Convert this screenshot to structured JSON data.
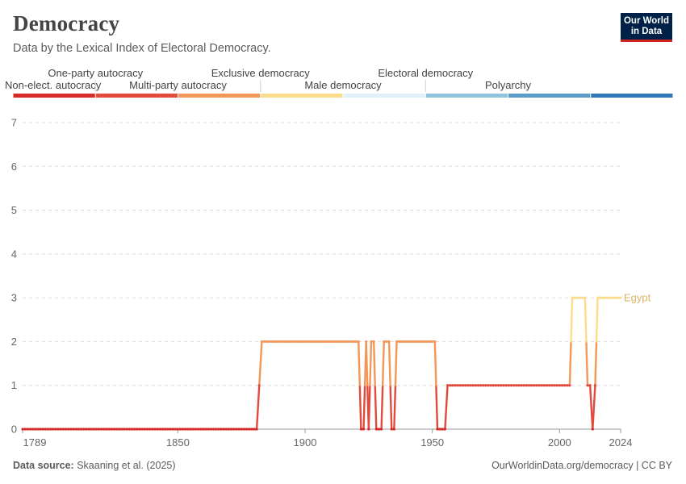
{
  "header": {
    "title": "Democracy",
    "subtitle": "Data by the Lexical Index of Electoral Democracy.",
    "logo_line1": "Our World",
    "logo_line2": "in Data"
  },
  "footer": {
    "source_label": "Data source:",
    "source_text": " Skaaning et al. (2025)",
    "right_text": "OurWorldinData.org/democracy | CC BY"
  },
  "chart_data": {
    "type": "line",
    "title": "Democracy",
    "subtitle": "Data by the Lexical Index of Electoral Democracy.",
    "xlabel": "",
    "ylabel": "",
    "xlim": [
      1789,
      2024
    ],
    "ylim": [
      0,
      7
    ],
    "yticks": [
      0,
      1,
      2,
      3,
      4,
      5,
      6,
      7
    ],
    "xticks": [
      1789,
      1850,
      1900,
      1950,
      2000,
      2024
    ],
    "grid": true,
    "legend": {
      "type": "categorical-color-bar",
      "position": "top",
      "categories": [
        {
          "label": "Non-elect. autocracy",
          "color": "#d52b2b",
          "row": 2
        },
        {
          "label": "One-party autocracy",
          "color": "#e24a3b",
          "row": 1
        },
        {
          "label": "Multi-party autocracy",
          "color": "#f39759",
          "row": 2
        },
        {
          "label": "Exclusive democracy",
          "color": "#f9dc8c",
          "row": 1
        },
        {
          "label": "Male democracy",
          "color": "#dff0f9",
          "row": 2
        },
        {
          "label": "Electoral democracy",
          "color": "#90c3dc",
          "row": 1
        },
        {
          "label": "Polyarchy",
          "color": "#5b9cca",
          "row": 2
        },
        {
          "label": "",
          "color": "#2f78b7",
          "row": 0
        }
      ]
    },
    "series": [
      {
        "name": "Egypt",
        "label_color": "#d8b46a",
        "points": [
          [
            1789,
            0
          ],
          [
            1881,
            0
          ],
          [
            1882,
            1
          ],
          [
            1883,
            2
          ],
          [
            1921,
            2
          ],
          [
            1922,
            0
          ],
          [
            1923,
            0
          ],
          [
            1924,
            2
          ],
          [
            1925,
            0
          ],
          [
            1926,
            2
          ],
          [
            1927,
            2
          ],
          [
            1928,
            0
          ],
          [
            1929,
            0
          ],
          [
            1930,
            0
          ],
          [
            1931,
            2
          ],
          [
            1932,
            2
          ],
          [
            1933,
            2
          ],
          [
            1934,
            0
          ],
          [
            1935,
            0
          ],
          [
            1936,
            2
          ],
          [
            1951,
            2
          ],
          [
            1952,
            0
          ],
          [
            1953,
            0
          ],
          [
            1954,
            0
          ],
          [
            1955,
            0
          ],
          [
            1956,
            1
          ],
          [
            2004,
            1
          ],
          [
            2005,
            3
          ],
          [
            2010,
            3
          ],
          [
            2011,
            1
          ],
          [
            2012,
            1
          ],
          [
            2013,
            0
          ],
          [
            2014,
            1
          ],
          [
            2015,
            3
          ],
          [
            2024,
            3
          ]
        ]
      }
    ]
  }
}
